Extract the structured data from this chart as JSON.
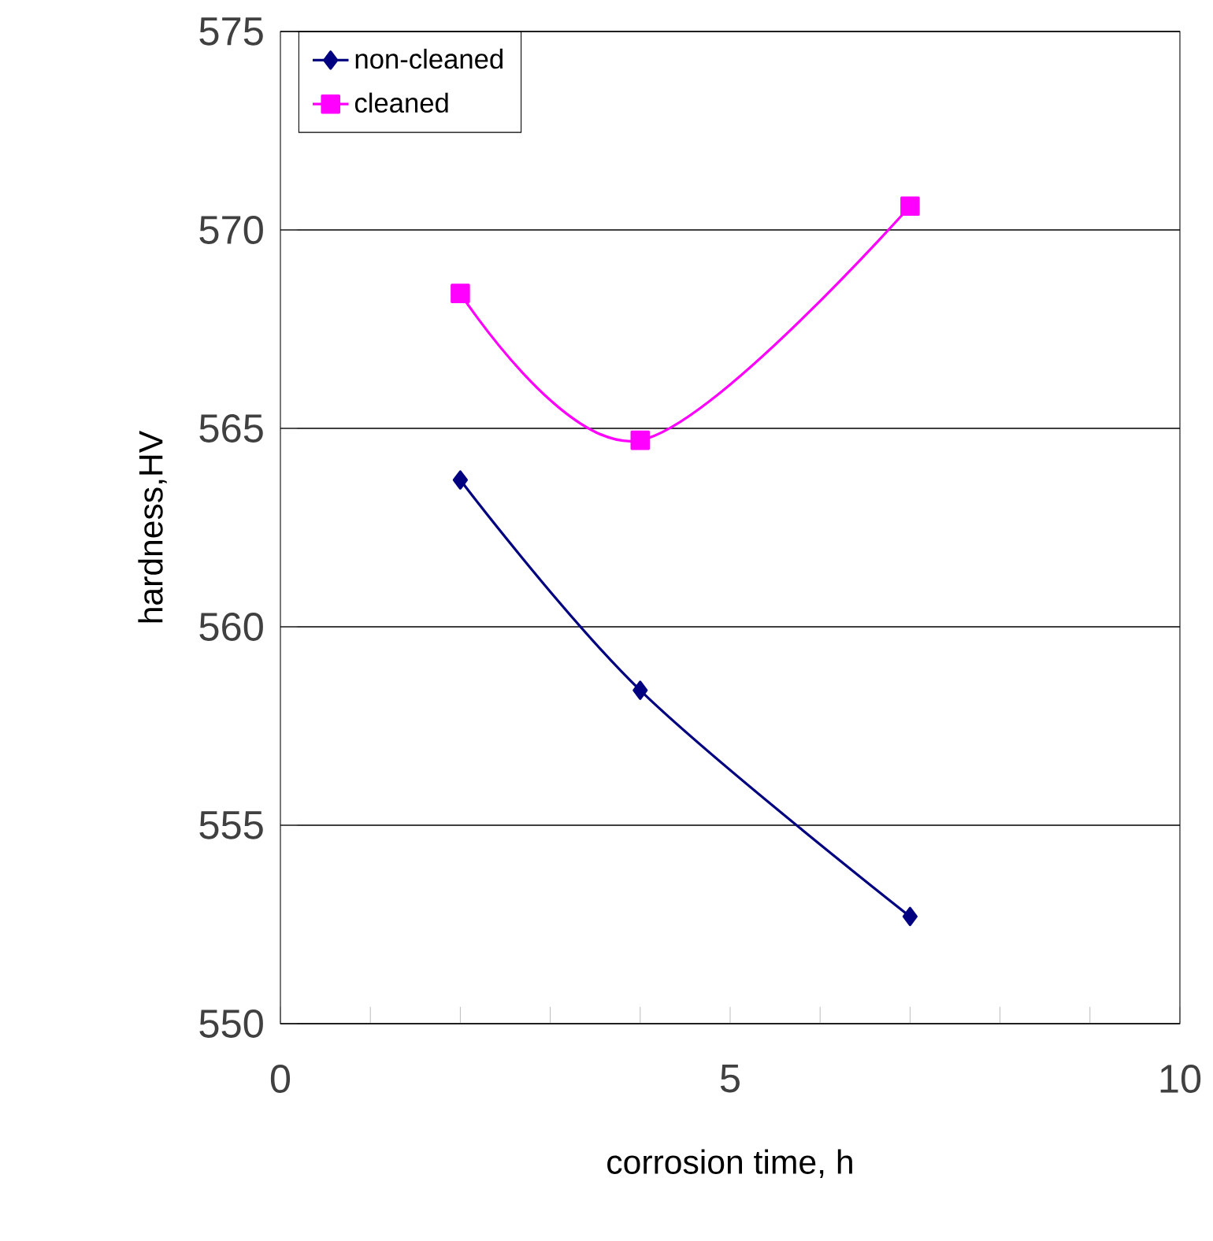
{
  "chart_data": {
    "type": "line",
    "xlabel": "corrosion time, h",
    "ylabel": "hardness,HV",
    "xlim": [
      0,
      10
    ],
    "ylim": [
      550,
      575
    ],
    "xticks": [
      0,
      {
        "value": 1,
        "label": null
      },
      {
        "value": 2,
        "label": null
      },
      {
        "value": 3,
        "label": null
      },
      {
        "value": 4,
        "label": null
      },
      5,
      {
        "value": 6,
        "label": null
      },
      {
        "value": 7,
        "label": null
      },
      {
        "value": 8,
        "label": null
      },
      {
        "value": 9,
        "label": null
      },
      10
    ],
    "yticks": [
      550,
      555,
      560,
      565,
      570,
      575
    ],
    "grid": "y",
    "legend": "top left",
    "series": [
      {
        "name": "non-cleaned",
        "color": "#000080",
        "marker": "diamond",
        "x": [
          2,
          4,
          7
        ],
        "values": [
          563.7,
          558.4,
          552.7
        ]
      },
      {
        "name": "cleaned",
        "color": "#ff00ff",
        "marker": "square",
        "x": [
          2,
          4,
          7
        ],
        "values": [
          568.4,
          564.7,
          570.6
        ]
      }
    ]
  }
}
